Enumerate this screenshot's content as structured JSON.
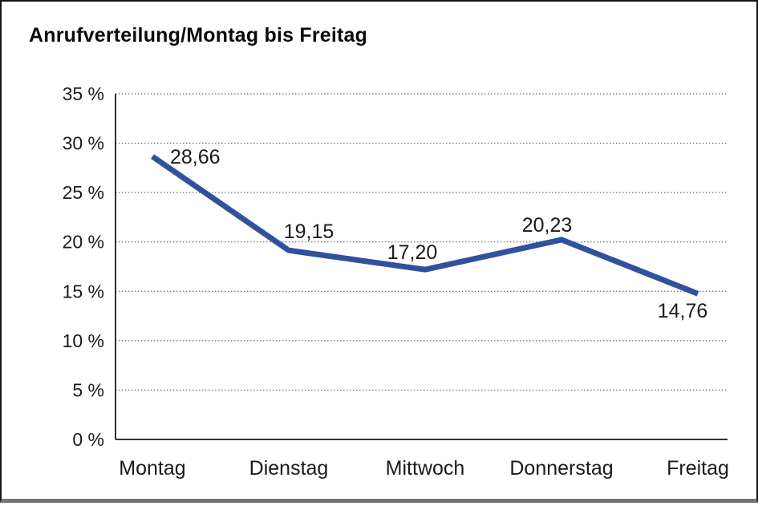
{
  "title": "Anrufverteilung/Montag bis Freitag",
  "colors": {
    "series_line": "#2F519E",
    "axis": "#1a1a1a",
    "gridline": "#4d4d4d",
    "text": "#1a1a1a",
    "frame_border": "#141414",
    "frame_bottom_bar": "#757575",
    "background": "#ffffff"
  },
  "chart_data": {
    "type": "line",
    "title": "Anrufverteilung/Montag bis Freitag",
    "categories": [
      "Montag",
      "Dienstag",
      "Mittwoch",
      "Donnerstag",
      "Freitag"
    ],
    "series": [
      {
        "name": "Anrufverteilung",
        "values": [
          28.66,
          19.15,
          17.2,
          20.23,
          14.76
        ],
        "value_labels": [
          "28,66",
          "19,15",
          "17,20",
          "20,23",
          "14,76"
        ],
        "color": "#2F519E"
      }
    ],
    "xlabel": "",
    "ylabel": "",
    "ylim": [
      0,
      35
    ],
    "y_tick_step": 5,
    "y_ticks": [
      0,
      5,
      10,
      15,
      20,
      25,
      30,
      35
    ],
    "y_tick_labels": [
      "0 %",
      "5 %",
      "10 %",
      "15 %",
      "20 %",
      "25 %",
      "30 %",
      "35 %"
    ],
    "grid": "horizontal-dotted",
    "legend": "none",
    "markers": "none"
  }
}
